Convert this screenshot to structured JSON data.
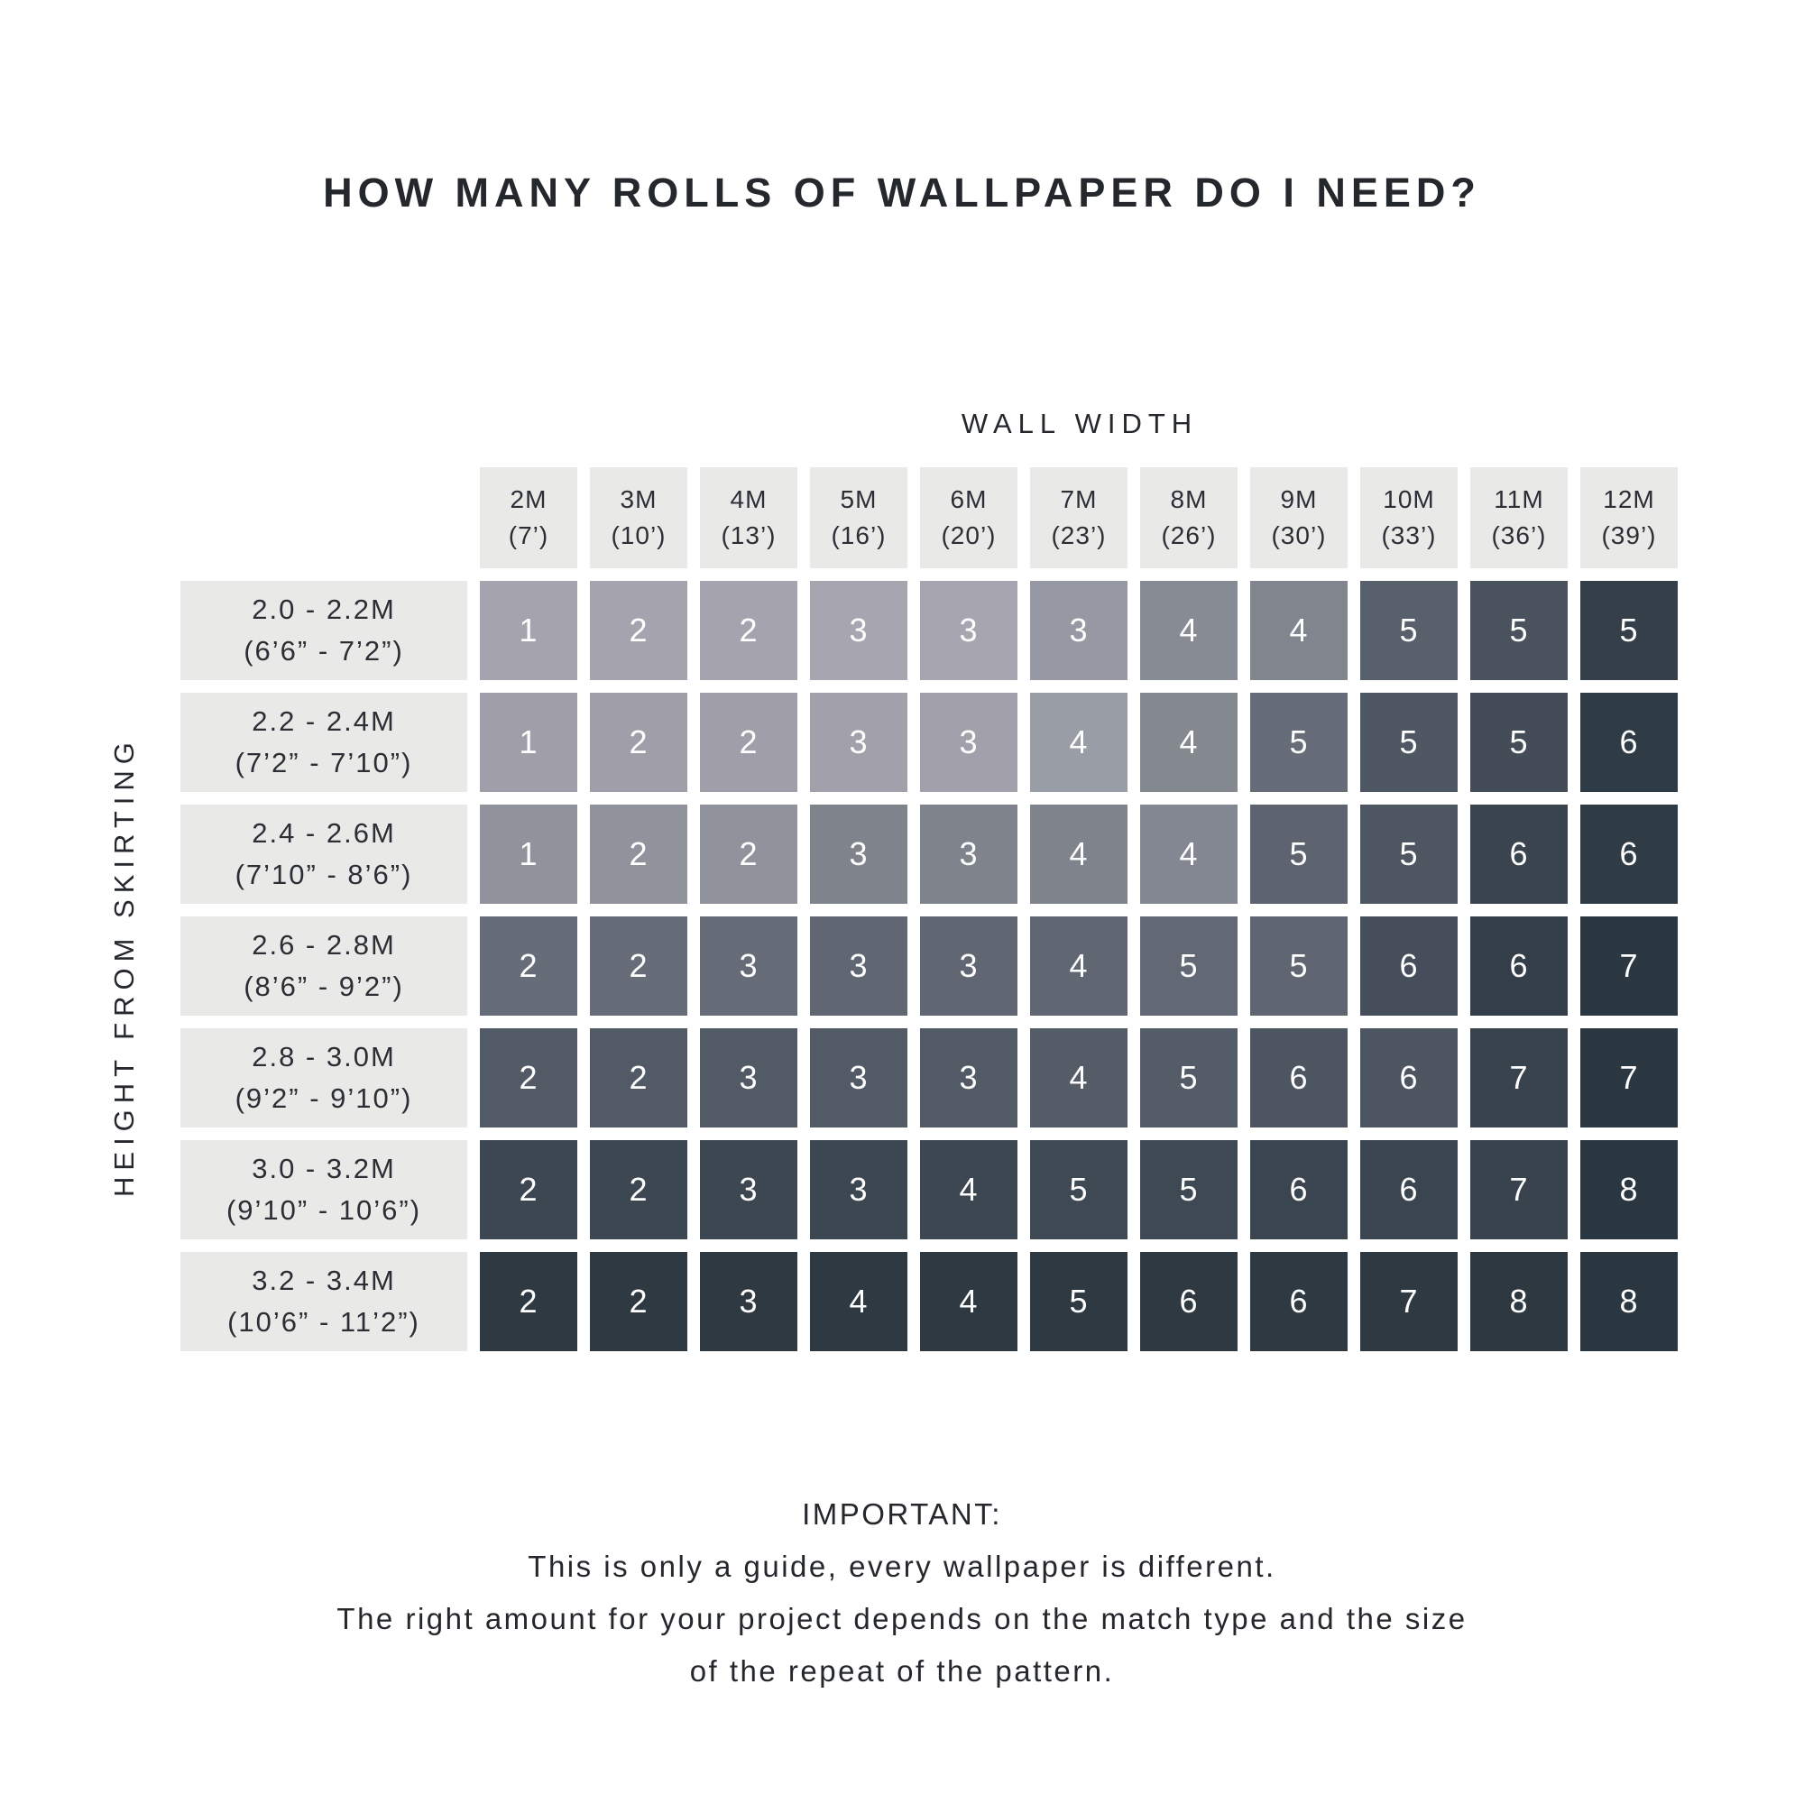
{
  "title": "HOW MANY ROLLS OF WALLPAPER DO I NEED?",
  "chart_data": {
    "type": "heatmap",
    "title": "HOW MANY ROLLS OF WALLPAPER DO I NEED?",
    "xlabel": "WALL WIDTH",
    "ylabel": "HEIGHT FROM SKIRTING",
    "columns": [
      {
        "metric": "2M",
        "imperial": "(7’)"
      },
      {
        "metric": "3M",
        "imperial": "(10’)"
      },
      {
        "metric": "4M",
        "imperial": "(13’)"
      },
      {
        "metric": "5M",
        "imperial": "(16’)"
      },
      {
        "metric": "6M",
        "imperial": "(20’)"
      },
      {
        "metric": "7M",
        "imperial": "(23’)"
      },
      {
        "metric": "8M",
        "imperial": "(26’)"
      },
      {
        "metric": "9M",
        "imperial": "(30’)"
      },
      {
        "metric": "10M",
        "imperial": "(33’)"
      },
      {
        "metric": "11M",
        "imperial": "(36’)"
      },
      {
        "metric": "12M",
        "imperial": "(39’)"
      }
    ],
    "rows": [
      {
        "metric": "2.0 - 2.2M",
        "imperial": "(6’6” - 7’2”)"
      },
      {
        "metric": "2.2 - 2.4M",
        "imperial": "(7’2” - 7’10”)"
      },
      {
        "metric": "2.4 - 2.6M",
        "imperial": "(7’10” - 8’6”)"
      },
      {
        "metric": "2.6 - 2.8M",
        "imperial": "(8’6” - 9’2”)"
      },
      {
        "metric": "2.8 - 3.0M",
        "imperial": "(9’2” - 9’10”)"
      },
      {
        "metric": "3.0 - 3.2M",
        "imperial": "(9’10” - 10’6”)"
      },
      {
        "metric": "3.2 - 3.4M",
        "imperial": "(10’6” - 11’2”)"
      }
    ],
    "values": [
      [
        1,
        2,
        2,
        3,
        3,
        3,
        4,
        4,
        5,
        5,
        5
      ],
      [
        1,
        2,
        2,
        3,
        3,
        4,
        4,
        5,
        5,
        5,
        6
      ],
      [
        1,
        2,
        2,
        3,
        3,
        4,
        4,
        5,
        5,
        6,
        6
      ],
      [
        2,
        2,
        3,
        3,
        3,
        4,
        5,
        5,
        6,
        6,
        7
      ],
      [
        2,
        2,
        3,
        3,
        3,
        4,
        5,
        6,
        6,
        7,
        7
      ],
      [
        2,
        2,
        3,
        3,
        4,
        5,
        5,
        6,
        6,
        7,
        8
      ],
      [
        2,
        2,
        3,
        4,
        4,
        5,
        6,
        6,
        7,
        8,
        8
      ]
    ],
    "cell_colors": [
      [
        "#a5a4ae",
        "#a5a4ae",
        "#a5a4ae",
        "#a7a6b0",
        "#a7a6b0",
        "#9699a3",
        "#878b93",
        "#80858e",
        "#58616b",
        "#49525d",
        "#343f49"
      ],
      [
        "#a09fa9",
        "#a09fa9",
        "#a09fa9",
        "#a2a1ab",
        "#a2a1ab",
        "#999da6",
        "#84888f",
        "#666d78",
        "#4f5862",
        "#434c57",
        "#2f3b45"
      ],
      [
        "#90939c",
        "#90939c",
        "#90939c",
        "#7e838c",
        "#7e838c",
        "#7e838c",
        "#838791",
        "#5d646f",
        "#4d5661",
        "#3a444f",
        "#2f3b45"
      ],
      [
        "#676d78",
        "#676d78",
        "#666c77",
        "#616772",
        "#616772",
        "#616772",
        "#636974",
        "#5f6671",
        "#454e5a",
        "#333e49",
        "#2c3841"
      ],
      [
        "#525a65",
        "#525a65",
        "#525a65",
        "#525a65",
        "#525a65",
        "#545c67",
        "#545c67",
        "#4d5560",
        "#4d5560",
        "#39434e",
        "#2c3841"
      ],
      [
        "#3d4751",
        "#3d4751",
        "#3d4751",
        "#3d4751",
        "#3d4751",
        "#3f4953",
        "#3f4953",
        "#3b454f",
        "#3b454f",
        "#39434e",
        "#2a3640"
      ],
      [
        "#2e3942",
        "#2e3942",
        "#2e3942",
        "#2e3942",
        "#2e3942",
        "#2e3942",
        "#2e3942",
        "#2e3942",
        "#2e3942",
        "#2d3841",
        "#2b3740"
      ]
    ]
  },
  "footer": {
    "heading": "IMPORTANT:",
    "lines": [
      "This is only a guide, every wallpaper is different.",
      "The right amount for your project depends on the match type and the size",
      "of the repeat of the pattern."
    ]
  },
  "colors": {
    "background": "#ffffff",
    "label_background": "#e9e9e7",
    "heading_text": "#24272c",
    "cell_text": "#ffffff"
  }
}
